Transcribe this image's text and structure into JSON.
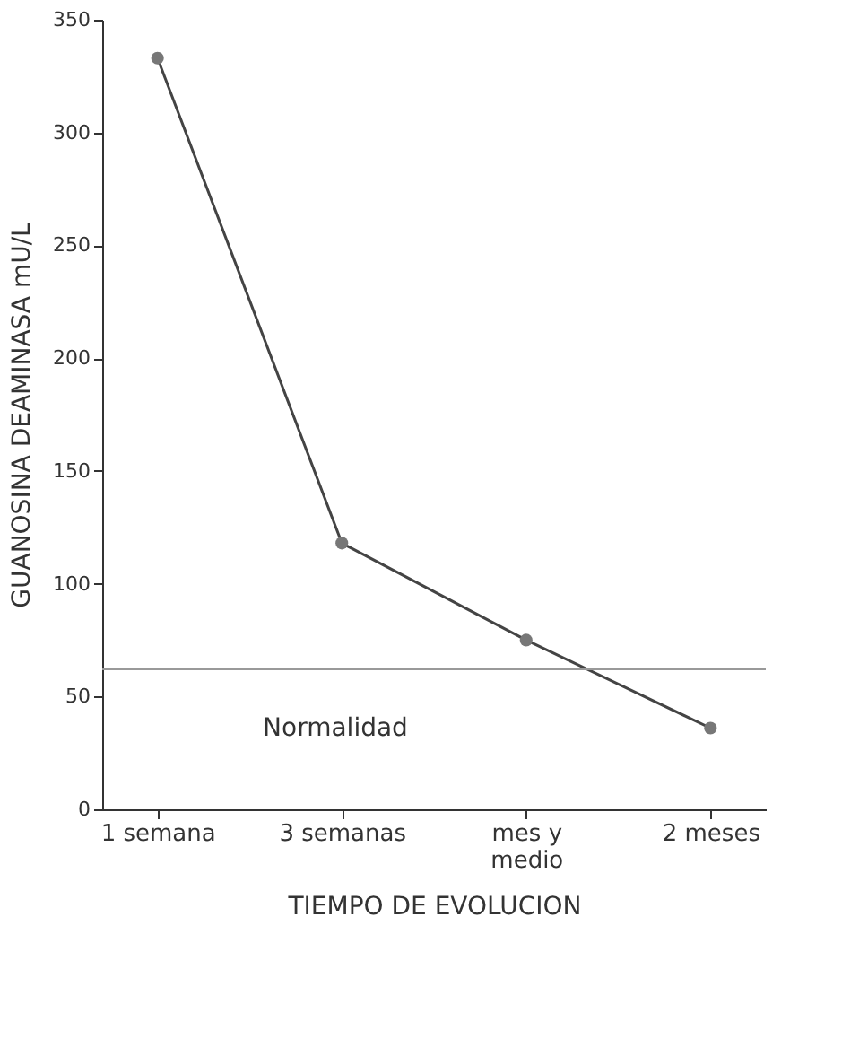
{
  "chart_data": {
    "type": "line",
    "xlabel": "TIEMPO DE EVOLUCION",
    "ylabel": "GUANOSINA DEAMINASA mU/L",
    "categories": [
      "1 semana",
      "3 semanas",
      "mes y\nmedio",
      "2 meses"
    ],
    "series": [
      {
        "color": "#444444",
        "values": [
          333,
          118,
          75,
          36
        ]
      }
    ],
    "ylim": [
      0,
      350
    ],
    "yticks": [
      0,
      50,
      100,
      150,
      200,
      250,
      300,
      350
    ],
    "ref_lines": [
      {
        "axis": "y",
        "value": 62,
        "color": "#999999"
      }
    ],
    "annotations": [
      "Normalidad"
    ],
    "marker": "circle",
    "line_style": "solid",
    "grid": false
  }
}
